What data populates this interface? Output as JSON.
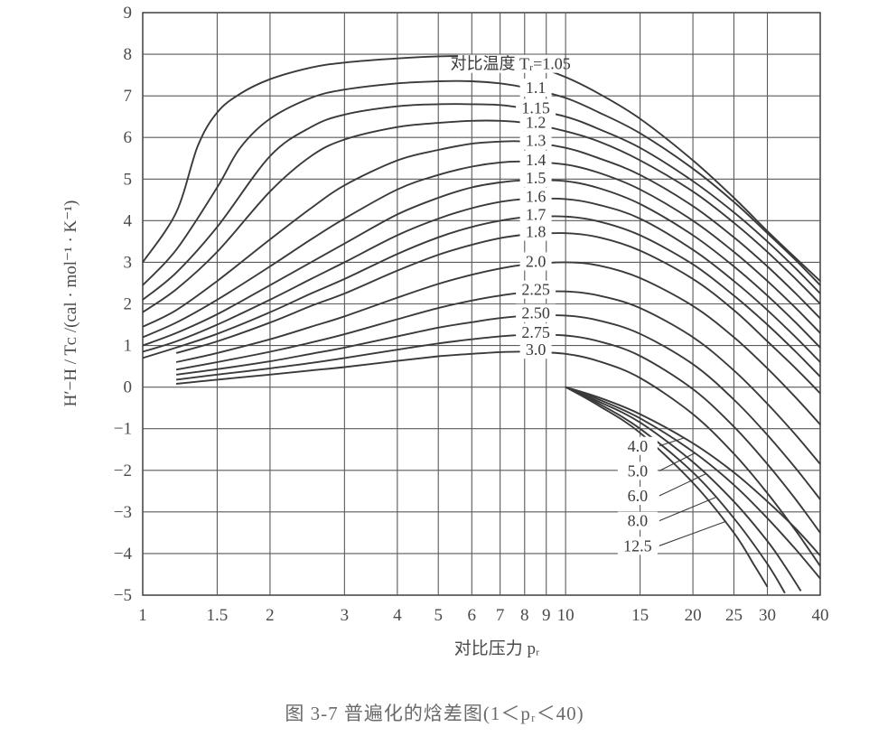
{
  "caption": "图 3-7   普遍化的焓差图(1＜pᵣ＜40)",
  "chart_data": {
    "type": "line",
    "x_scale": "log",
    "xlim": [
      1,
      40
    ],
    "ylim": [
      -5,
      9
    ],
    "xticks": [
      1,
      1.5,
      2,
      3,
      4,
      5,
      6,
      7,
      8,
      9,
      10,
      15,
      20,
      25,
      30,
      40
    ],
    "xtick_labels": [
      "1",
      "1.5",
      "2",
      "3",
      "4",
      "5",
      "6",
      "7",
      "8",
      "9",
      "10",
      "15",
      "20",
      "25",
      "30",
      "40"
    ],
    "yticks": [
      -5,
      -4,
      -3,
      -2,
      -1,
      0,
      1,
      2,
      3,
      4,
      5,
      6,
      7,
      8,
      9
    ],
    "ytick_labels": [
      "−5",
      "−4",
      "−3",
      "−2",
      "−1",
      "0",
      "1",
      "2",
      "3",
      "4",
      "5",
      "6",
      "7",
      "8",
      "9"
    ],
    "xlabel": "对比压力 pᵣ",
    "ylabel": "H′−H / Tᴄ /(cal · mol⁻¹ · K⁻¹)",
    "grid": true,
    "legend_title": "对比温度 Tᵣ=",
    "series": [
      {
        "name": "1.05",
        "x": [
          1,
          1.2,
          1.35,
          1.5,
          1.7,
          2,
          2.5,
          3,
          4,
          5,
          6,
          7,
          8,
          10,
          12,
          15,
          20,
          25,
          30,
          35,
          40
        ],
        "y": [
          3.0,
          4.2,
          5.8,
          6.6,
          7.05,
          7.4,
          7.68,
          7.8,
          7.9,
          7.95,
          7.95,
          7.9,
          7.8,
          7.45,
          7.05,
          6.45,
          5.45,
          4.55,
          3.75,
          3.1,
          2.55
        ]
      },
      {
        "name": "1.1",
        "x": [
          1,
          1.2,
          1.5,
          1.7,
          2,
          2.5,
          3,
          4,
          5,
          6,
          7,
          8,
          10,
          12,
          15,
          20,
          25,
          30,
          35,
          40
        ],
        "y": [
          2.45,
          3.3,
          4.8,
          5.75,
          6.45,
          6.95,
          7.15,
          7.3,
          7.35,
          7.35,
          7.3,
          7.2,
          6.95,
          6.6,
          6.1,
          5.25,
          4.45,
          3.7,
          3.05,
          2.45
        ]
      },
      {
        "name": "1.15",
        "x": [
          1,
          1.2,
          1.5,
          2,
          2.5,
          3,
          4,
          5,
          6,
          7,
          8,
          10,
          12,
          15,
          20,
          25,
          30,
          35,
          40
        ],
        "y": [
          2.1,
          2.75,
          3.85,
          5.55,
          6.25,
          6.55,
          6.75,
          6.8,
          6.8,
          6.78,
          6.7,
          6.5,
          6.2,
          5.75,
          4.95,
          4.2,
          3.5,
          2.85,
          2.25
        ]
      },
      {
        "name": "1.2",
        "x": [
          1,
          1.2,
          1.5,
          2,
          2.5,
          3,
          4,
          5,
          6,
          7,
          8,
          10,
          12,
          15,
          20,
          25,
          30,
          35,
          40
        ],
        "y": [
          1.8,
          2.35,
          3.25,
          4.7,
          5.55,
          5.95,
          6.25,
          6.35,
          6.4,
          6.4,
          6.35,
          6.15,
          5.9,
          5.45,
          4.7,
          3.95,
          3.25,
          2.6,
          2.0
        ]
      },
      {
        "name": "1.3",
        "x": [
          1,
          1.2,
          1.5,
          2,
          2.5,
          3,
          4,
          5,
          6,
          7,
          8,
          10,
          12,
          15,
          20,
          25,
          30,
          35,
          40
        ],
        "y": [
          1.45,
          1.85,
          2.55,
          3.55,
          4.3,
          4.85,
          5.45,
          5.7,
          5.85,
          5.9,
          5.9,
          5.75,
          5.5,
          5.1,
          4.35,
          3.6,
          2.9,
          2.25,
          1.65
        ]
      },
      {
        "name": "1.4",
        "x": [
          1,
          1.2,
          1.5,
          2,
          2.5,
          3,
          4,
          5,
          6,
          7,
          8,
          10,
          12,
          15,
          20,
          25,
          30,
          35,
          40
        ],
        "y": [
          1.2,
          1.55,
          2.1,
          2.9,
          3.55,
          4.05,
          4.75,
          5.1,
          5.3,
          5.4,
          5.42,
          5.35,
          5.15,
          4.75,
          4.0,
          3.25,
          2.55,
          1.9,
          1.3
        ]
      },
      {
        "name": "1.5",
        "x": [
          1,
          1.2,
          1.5,
          2,
          2.5,
          3,
          4,
          5,
          6,
          7,
          8,
          10,
          12,
          15,
          20,
          25,
          30,
          35,
          40
        ],
        "y": [
          1.0,
          1.3,
          1.75,
          2.45,
          3.0,
          3.45,
          4.15,
          4.55,
          4.8,
          4.92,
          4.97,
          4.95,
          4.78,
          4.4,
          3.65,
          2.9,
          2.2,
          1.55,
          0.95
        ]
      },
      {
        "name": "1.6",
        "x": [
          1,
          1.2,
          1.5,
          2,
          2.5,
          3,
          4,
          5,
          6,
          7,
          8,
          10,
          12,
          15,
          20,
          25,
          30,
          35,
          40
        ],
        "y": [
          0.85,
          1.1,
          1.5,
          2.1,
          2.6,
          3.0,
          3.65,
          4.05,
          4.3,
          4.45,
          4.52,
          4.52,
          4.38,
          4.05,
          3.3,
          2.55,
          1.85,
          1.2,
          0.6
        ]
      },
      {
        "name": "1.7",
        "x": [
          1,
          1.2,
          1.5,
          2,
          2.5,
          3,
          4,
          5,
          6,
          7,
          8,
          10,
          12,
          15,
          20,
          25,
          30,
          35,
          40
        ],
        "y": [
          0.7,
          0.95,
          1.28,
          1.8,
          2.25,
          2.6,
          3.2,
          3.6,
          3.85,
          4.0,
          4.08,
          4.1,
          3.98,
          3.65,
          2.95,
          2.2,
          1.5,
          0.85,
          0.25
        ]
      },
      {
        "name": "1.8",
        "x": [
          1.2,
          1.5,
          2,
          2.5,
          3,
          4,
          5,
          6,
          7,
          8,
          10,
          12,
          15,
          20,
          25,
          30,
          35,
          40
        ],
        "y": [
          0.82,
          1.1,
          1.55,
          1.95,
          2.25,
          2.8,
          3.18,
          3.42,
          3.58,
          3.66,
          3.7,
          3.6,
          3.28,
          2.6,
          1.85,
          1.1,
          0.45,
          -0.15
        ]
      },
      {
        "name": "2.0",
        "x": [
          1.2,
          1.5,
          2,
          2.5,
          3,
          4,
          5,
          6,
          7,
          8,
          10,
          12,
          15,
          20,
          25,
          30,
          35,
          40
        ],
        "y": [
          0.6,
          0.82,
          1.15,
          1.45,
          1.7,
          2.15,
          2.48,
          2.7,
          2.85,
          2.94,
          3.0,
          2.92,
          2.62,
          1.95,
          1.2,
          0.45,
          -0.25,
          -0.9
        ]
      },
      {
        "name": "2.25",
        "x": [
          1.2,
          1.5,
          2,
          2.5,
          3,
          4,
          5,
          6,
          7,
          8,
          10,
          12,
          15,
          20,
          25,
          30,
          35,
          40
        ],
        "y": [
          0.42,
          0.6,
          0.85,
          1.07,
          1.27,
          1.63,
          1.9,
          2.08,
          2.2,
          2.27,
          2.3,
          2.2,
          1.9,
          1.2,
          0.4,
          -0.4,
          -1.15,
          -1.85
        ]
      },
      {
        "name": "2.50",
        "x": [
          1.2,
          1.5,
          2,
          2.5,
          3,
          4,
          5,
          6,
          7,
          8,
          10,
          12,
          15,
          20,
          25,
          30,
          35,
          40
        ],
        "y": [
          0.3,
          0.43,
          0.62,
          0.8,
          0.95,
          1.22,
          1.43,
          1.56,
          1.66,
          1.71,
          1.72,
          1.6,
          1.28,
          0.55,
          -0.3,
          -1.15,
          -1.95,
          -2.7
        ]
      },
      {
        "name": "2.75",
        "x": [
          1.2,
          1.5,
          2,
          2.5,
          3,
          4,
          5,
          6,
          7,
          8,
          10,
          12,
          15,
          20,
          25,
          30,
          35,
          40
        ],
        "y": [
          0.18,
          0.3,
          0.45,
          0.58,
          0.7,
          0.9,
          1.05,
          1.15,
          1.22,
          1.25,
          1.24,
          1.1,
          0.75,
          -0.05,
          -0.95,
          -1.85,
          -2.7,
          -3.5
        ]
      },
      {
        "name": "3.0",
        "x": [
          1.2,
          1.5,
          2,
          2.5,
          3,
          4,
          5,
          6,
          7,
          8,
          10,
          12,
          15,
          20,
          25,
          30,
          35,
          40
        ],
        "y": [
          0.08,
          0.18,
          0.3,
          0.4,
          0.48,
          0.63,
          0.74,
          0.8,
          0.84,
          0.85,
          0.8,
          0.62,
          0.22,
          -0.65,
          -1.6,
          -2.55,
          -3.45,
          -4.3
        ]
      },
      {
        "name": "4.0",
        "x": [
          10,
          12,
          15,
          20,
          25,
          30,
          35,
          40
        ],
        "y": [
          0,
          -0.25,
          -0.65,
          -1.35,
          -2.05,
          -2.75,
          -3.4,
          -4.05
        ]
      },
      {
        "name": "5.0",
        "x": [
          10,
          12,
          15,
          20,
          25,
          30,
          35,
          40
        ],
        "y": [
          0,
          -0.3,
          -0.75,
          -1.55,
          -2.35,
          -3.15,
          -3.9,
          -4.6
        ]
      },
      {
        "name": "6.0",
        "x": [
          10,
          12,
          15,
          20,
          25,
          30,
          33,
          36
        ],
        "y": [
          0,
          -0.35,
          -0.85,
          -1.8,
          -2.75,
          -3.7,
          -4.3,
          -4.9
        ]
      },
      {
        "name": "8.0",
        "x": [
          10,
          12,
          15,
          20,
          25,
          30,
          33
        ],
        "y": [
          0,
          -0.4,
          -1.0,
          -2.05,
          -3.15,
          -4.25,
          -4.95
        ]
      },
      {
        "name": "12.5",
        "x": [
          10,
          12,
          15,
          20,
          25,
          28,
          30
        ],
        "y": [
          0,
          -0.45,
          -1.1,
          -2.3,
          -3.5,
          -4.3,
          -4.8
        ]
      }
    ],
    "inline_labels": [
      "1.05",
      "1.1",
      "1.15",
      "1.2",
      "1.3",
      "1.4",
      "1.5",
      "1.6",
      "1.7",
      "1.8",
      "2.0",
      "2.25",
      "2.50",
      "2.75",
      "3.0"
    ],
    "lower_labels": [
      "4.0",
      "5.0",
      "6.0",
      "8.0",
      "12.5"
    ]
  },
  "colors": {
    "line": "#3a3a3a",
    "grid": "#5a5a5a",
    "text": "#4a4a4a"
  }
}
